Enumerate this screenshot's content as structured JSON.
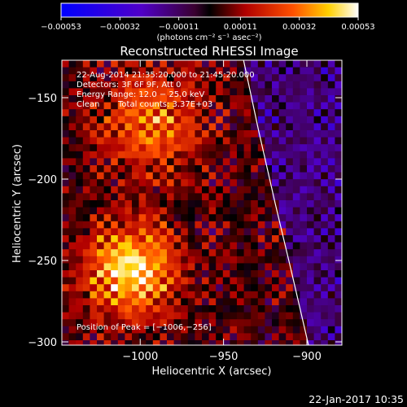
{
  "chart_data": {
    "type": "heatmap",
    "title": "Reconstructed RHESSI Image",
    "xlabel": "Heliocentric X (arcsec)",
    "ylabel": "Heliocentric Y (arcsec)",
    "xlim": [
      -1047,
      -879
    ],
    "ylim": [
      -302,
      -127
    ],
    "xticks": [
      -1000,
      -950,
      -900
    ],
    "xtick_labels": [
      "−1000",
      "−950",
      "−900"
    ],
    "yticks": [
      -150,
      -200,
      -250,
      -300
    ],
    "ytick_labels": [
      "−150",
      "−200",
      "−250",
      "−300"
    ],
    "colorbar": {
      "min": -0.00053,
      "max": 0.00053,
      "tick_values": [
        -0.00053,
        -0.00032,
        -0.00011,
        0.00011,
        0.00032,
        0.00053
      ],
      "tick_labels": [
        "−0.00053",
        "−0.00032",
        "−0.00011",
        "0.00011",
        "0.00032",
        "0.00053"
      ],
      "units_label": "(photons cm⁻² s⁻¹ asec⁻²)"
    },
    "peak": {
      "x": -1006,
      "y": -256
    },
    "limb_curve": {
      "x": [
        -938,
        -929,
        -919,
        -909,
        -899
      ],
      "y": [
        -127,
        -170,
        -215,
        -258,
        -302
      ]
    },
    "annotations": {
      "time_range": "22-Aug-2014 21:35:20.000 to 21:45:20.000",
      "detectors": "Detectors: 3F 6F 9F, Att 0",
      "energy": "Energy Range: 12.0 − 25.0 keV",
      "clean": "Clean",
      "total_counts": "Total counts: 3.37E+03",
      "peak_label": "Position of Peak = [−1006,−256]"
    }
  },
  "footer": {
    "date": "22-Jan-2017 10:35"
  }
}
